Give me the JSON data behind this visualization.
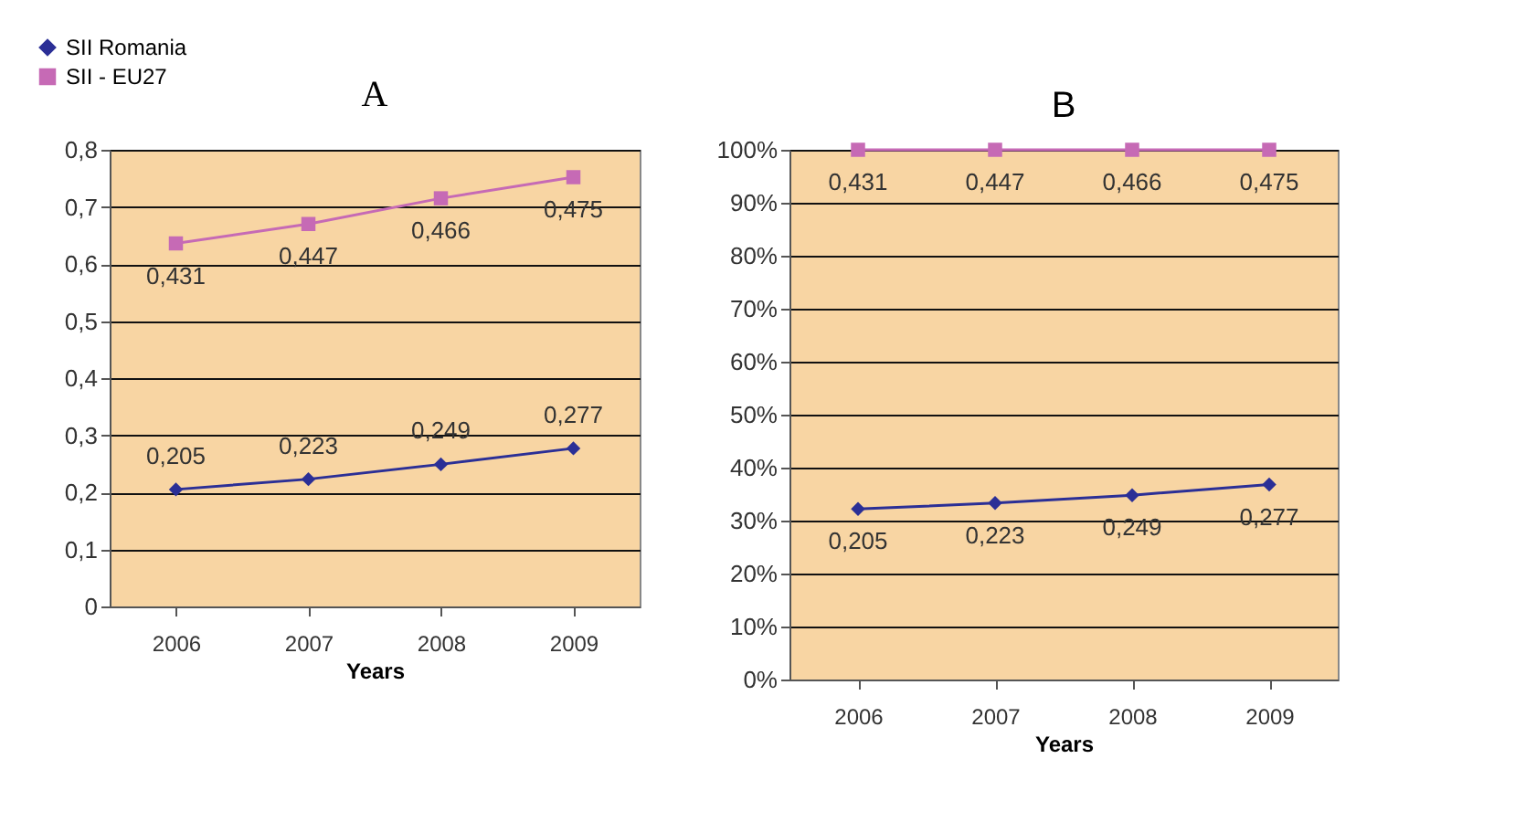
{
  "chart_data": [
    {
      "type": "line",
      "title": "A",
      "xlabel": "Years",
      "categories": [
        "2006",
        "2007",
        "2008",
        "2009"
      ],
      "series": [
        {
          "name": "SII Romania",
          "color": "#2b2f96",
          "marker": "diamond",
          "values": [
            0.205,
            0.223,
            0.249,
            0.277
          ]
        },
        {
          "name": "SII - EU27",
          "color": "#c66ab5",
          "marker": "square",
          "values": [
            0.636,
            0.67,
            0.715,
            0.752
          ]
        }
      ],
      "annotations": [
        {
          "text": "0,205",
          "x": "2006",
          "y": 0.205
        },
        {
          "text": "0,223",
          "x": "2007",
          "y": 0.223
        },
        {
          "text": "0,249",
          "x": "2008",
          "y": 0.249
        },
        {
          "text": "0,277",
          "x": "2009",
          "y": 0.277
        },
        {
          "text": "0,431",
          "x": "2006",
          "y": 0.636
        },
        {
          "text": "0,447",
          "x": "2007",
          "y": 0.67
        },
        {
          "text": "0,466",
          "x": "2008",
          "y": 0.715
        },
        {
          "text": "0,475",
          "x": "2009",
          "y": 0.752
        }
      ],
      "ylim": [
        0,
        0.8
      ],
      "yticks": [
        0,
        {
          "value": 0.1,
          "label": "0,1"
        },
        {
          "value": 0.2,
          "label": "0,2"
        },
        {
          "value": 0.3,
          "label": "0,3"
        },
        {
          "value": 0.4,
          "label": "0,4"
        },
        {
          "value": 0.5,
          "label": "0,5"
        },
        {
          "value": 0.6,
          "label": "0,6"
        },
        {
          "value": 0.7,
          "label": "0,7"
        },
        {
          "value": 0.8,
          "label": "0,8"
        }
      ],
      "grid": "y",
      "legend": "top left"
    },
    {
      "type": "line",
      "title": "B",
      "xlabel": "Years",
      "categories": [
        "2006",
        "2007",
        "2008",
        "2009"
      ],
      "series": [
        {
          "color": "#2b2f96",
          "marker": "diamond",
          "values": [
            32.2,
            33.3,
            34.8,
            36.8
          ]
        },
        {
          "color": "#c66ab5",
          "marker": "square",
          "values": [
            100,
            100,
            100,
            100
          ]
        }
      ],
      "annotations": [
        {
          "text": "0,205",
          "x": "2006",
          "y": 32.2
        },
        {
          "text": "0,223",
          "x": "2007",
          "y": 33.3
        },
        {
          "text": "0,249",
          "x": "2008",
          "y": 34.8
        },
        {
          "text": "0,277",
          "x": "2009",
          "y": 36.8
        },
        {
          "text": "0,431",
          "x": "2006",
          "y": 100
        },
        {
          "text": "0,447",
          "x": "2007",
          "y": 100
        },
        {
          "text": "0,466",
          "x": "2008",
          "y": 100
        },
        {
          "text": "0,475",
          "x": "2009",
          "y": 100
        }
      ],
      "ylim": [
        0,
        100
      ],
      "yticks": [
        {
          "value": 0,
          "label": "0%"
        },
        {
          "value": 10,
          "label": "10%"
        },
        {
          "value": 20,
          "label": "20%"
        },
        {
          "value": 30,
          "label": "30%"
        },
        {
          "value": 40,
          "label": "40%"
        },
        {
          "value": 50,
          "label": "50%"
        },
        {
          "value": 60,
          "label": "60%"
        },
        {
          "value": 70,
          "label": "70%"
        },
        {
          "value": 80,
          "label": "80%"
        },
        {
          "value": 90,
          "label": "90%"
        },
        {
          "value": 100,
          "label": "100%"
        }
      ],
      "grid": "y",
      "legend": false
    }
  ]
}
